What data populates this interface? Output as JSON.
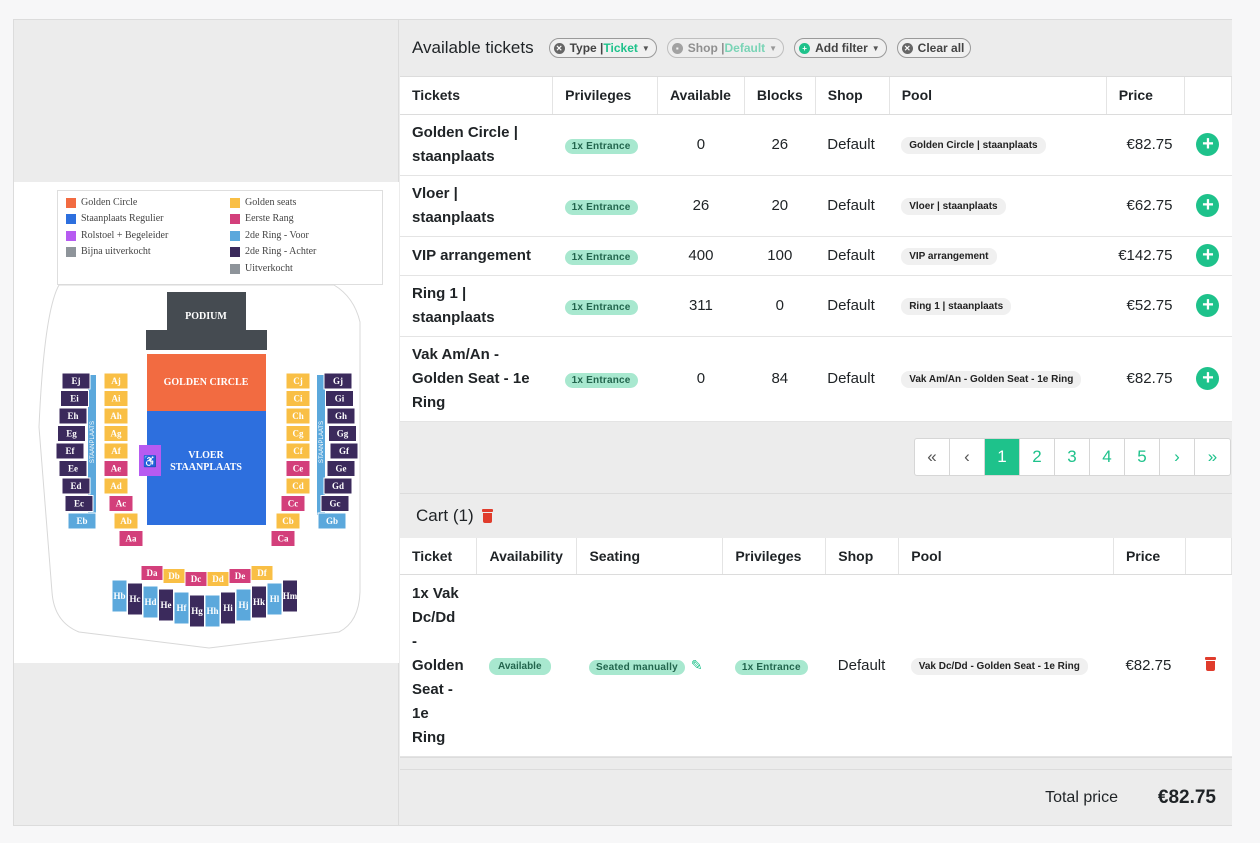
{
  "header": {
    "title": "Available tickets",
    "filters": [
      {
        "label": "Type | ",
        "value": "Ticket",
        "icon": "x-icon"
      },
      {
        "label": "Shop | ",
        "value": "Default",
        "icon": "lock-icon"
      },
      {
        "label": "Add filter",
        "value": "",
        "icon": "plus-icon"
      },
      {
        "label": "Clear all",
        "value": "",
        "icon": "x-icon"
      }
    ]
  },
  "tickets": {
    "columns": [
      "Tickets",
      "Privileges",
      "Available",
      "Blocks",
      "Shop",
      "Pool",
      "Price"
    ],
    "rows": [
      {
        "name": "Golden Circle | staanplaats",
        "privilege": "1x Entrance",
        "available": "0",
        "blocks": "26",
        "shop": "Default",
        "pool": "Golden Circle | staanplaats",
        "price": "€82.75"
      },
      {
        "name": "Vloer | staanplaats",
        "privilege": "1x Entrance",
        "available": "26",
        "blocks": "20",
        "shop": "Default",
        "pool": "Vloer | staanplaats",
        "price": "€62.75"
      },
      {
        "name": "VIP arrangement",
        "privilege": "1x Entrance",
        "available": "400",
        "blocks": "100",
        "shop": "Default",
        "pool": "VIP arrangement",
        "price": "€142.75"
      },
      {
        "name": "Ring 1 | staanplaats",
        "privilege": "1x Entrance",
        "available": "311",
        "blocks": "0",
        "shop": "Default",
        "pool": "Ring 1 | staanplaats",
        "price": "€52.75"
      },
      {
        "name": "Vak Am/An - Golden Seat - 1e Ring",
        "privilege": "1x Entrance",
        "available": "0",
        "blocks": "84",
        "shop": "Default",
        "pool": "Vak Am/An - Golden Seat - 1e Ring",
        "price": "€82.75"
      }
    ]
  },
  "pagination": {
    "first": "«",
    "prev": "‹",
    "pages": [
      "1",
      "2",
      "3",
      "4",
      "5"
    ],
    "next": "›",
    "last": "»"
  },
  "cart": {
    "title": "Cart (1)",
    "columns": [
      "Ticket",
      "Availability",
      "Seating",
      "Privileges",
      "Shop",
      "Pool",
      "Price"
    ],
    "item": {
      "ticket_lines": [
        "1x Vak",
        "Dc/Dd",
        "-",
        "Golden",
        "Seat -",
        "1e",
        "Ring"
      ],
      "availability": "Available",
      "seating": "Seated manually",
      "privilege": "1x Entrance",
      "shop": "Default",
      "pool": "Vak Dc/Dd - Golden Seat - 1e Ring",
      "price": "€82.75"
    },
    "total_label": "Total price",
    "total_value": "€82.75"
  },
  "map": {
    "legend": [
      {
        "label": "Golden Circle",
        "color": "#f26b41"
      },
      {
        "label": "Golden seats",
        "color": "#f9bf45"
      },
      {
        "label": "Staanplaats Regulier",
        "color": "#2d6fde"
      },
      {
        "label": "Eerste Rang",
        "color": "#d33f7b"
      },
      {
        "label": "Rolstoel + Begeleider",
        "color": "#b65bf1"
      },
      {
        "label": "2de Ring - Voor",
        "color": "#5ba8dc"
      },
      {
        "label": "Bijna uitverkocht",
        "color": "#8e949a"
      },
      {
        "label": "2de Ring - Achter",
        "color": "#3b2a5c"
      },
      {
        "label": "Uitverkocht",
        "color": "#8e949a"
      }
    ],
    "podium": "PODIUM",
    "golden_circle": "GOLDEN CIRCLE",
    "vloer_1": "VLOER",
    "vloer_2": "STAANPLAATS",
    "wheelchair": "♿",
    "staanplaats_side": "STAANPLAATS",
    "left_outer": [
      "Ej",
      "Ei",
      "Eh",
      "Eg",
      "Ef",
      "Ee",
      "Ed",
      "Ec",
      "Eb"
    ],
    "left_inner": [
      "Aj",
      "Ai",
      "Ah",
      "Ag",
      "Af",
      "Ae",
      "Ad",
      "Ac",
      "Ab",
      "Aa"
    ],
    "right_inner": [
      "Cj",
      "Ci",
      "Ch",
      "Cg",
      "Cf",
      "Ce",
      "Cd",
      "Cc",
      "Cb",
      "Ca"
    ],
    "right_outer": [
      "Gj",
      "Gi",
      "Gh",
      "Gg",
      "Gf",
      "Ge",
      "Gd",
      "Gc",
      "Gb"
    ],
    "front_row": [
      "Da",
      "Db",
      "Dc",
      "Dd",
      "De",
      "Df"
    ],
    "back_row": [
      "Hb",
      "Hc",
      "Hd",
      "He",
      "Hf",
      "Hg",
      "Hh",
      "Hi",
      "Hj",
      "Hk",
      "Hl",
      "Hm"
    ]
  }
}
